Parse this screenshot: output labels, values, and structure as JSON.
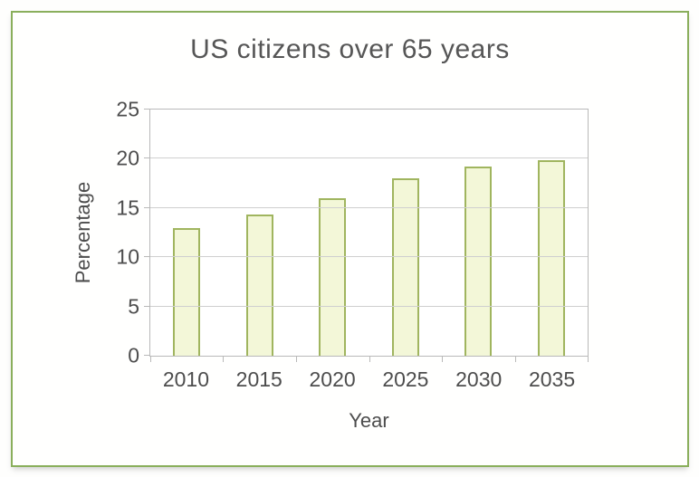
{
  "chart_data": {
    "type": "bar",
    "title": "US citizens over 65 years",
    "xlabel": "Year",
    "ylabel": "Percentage",
    "categories": [
      "2010",
      "2015",
      "2020",
      "2025",
      "2030",
      "2035"
    ],
    "values": [
      13,
      14.3,
      16,
      18,
      19.2,
      19.9
    ],
    "ylim": [
      0,
      25
    ],
    "yticks": [
      0,
      5,
      10,
      15,
      20,
      25
    ],
    "grid": "horizontal",
    "legend": "none",
    "colors": {
      "bar_fill": "#f3f7d8",
      "bar_border": "#a0b55f",
      "frame_border": "#8aaf5c",
      "gridline": "#cfcfcf",
      "text": "#4d4d4d"
    }
  }
}
